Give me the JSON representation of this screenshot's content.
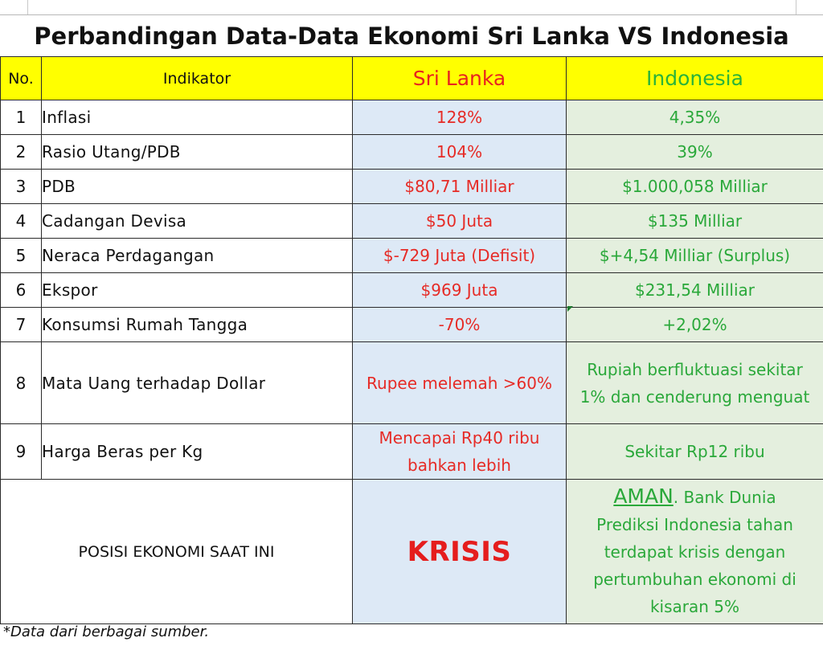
{
  "title": "Perbandingan Data-Data Ekonomi Sri Lanka VS Indonesia",
  "headers": {
    "no": "No.",
    "indikator": "Indikator",
    "sri_lanka": "Sri Lanka",
    "indonesia": "Indonesia"
  },
  "rows": [
    {
      "no": "1",
      "indikator": "Inflasi",
      "sri_lanka": "128%",
      "indonesia": "4,35%"
    },
    {
      "no": "2",
      "indikator": "Rasio Utang/PDB",
      "sri_lanka": "104%",
      "indonesia": "39%"
    },
    {
      "no": "3",
      "indikator": "PDB",
      "sri_lanka": "$80,71 Milliar",
      "indonesia": "$1.000,058 Milliar"
    },
    {
      "no": "4",
      "indikator": "Cadangan Devisa",
      "sri_lanka": "$50 Juta",
      "indonesia": "$135 Milliar"
    },
    {
      "no": "5",
      "indikator": "Neraca Perdagangan",
      "sri_lanka": "$-729 Juta (Defisit)",
      "indonesia": "$+4,54 Milliar (Surplus)"
    },
    {
      "no": "6",
      "indikator": "Ekspor",
      "sri_lanka": "$969 Juta",
      "indonesia": "$231,54 Milliar"
    },
    {
      "no": "7",
      "indikator": "Konsumsi Rumah Tangga",
      "sri_lanka": "-70%",
      "indonesia": "+2,02%"
    },
    {
      "no": "8",
      "indikator": "Mata Uang terhadap Dollar",
      "sri_lanka": "Rupee melemah >60%",
      "indonesia_line1": "Rupiah berfluktuasi sekitar",
      "indonesia_line2": "1% dan cenderung menguat"
    },
    {
      "no": "9",
      "indikator": "Harga Beras per Kg",
      "sri_lanka_line1": "Mencapai Rp40 ribu",
      "sri_lanka_line2": "bahkan lebih",
      "indonesia": "Sekitar Rp12 ribu"
    }
  ],
  "position": {
    "label": "POSISI EKONOMI SAAT INI",
    "sri_lanka": "KRISIS",
    "indonesia_aman": "AMAN",
    "indonesia_line1": ". Bank Dunia",
    "indonesia_line2": "Prediksi Indonesia tahan",
    "indonesia_line3": "terdapat krisis dengan",
    "indonesia_line4": "pertumbuhan ekonomi di",
    "indonesia_line5": "kisaran 5%"
  },
  "footnote": "*Data dari berbagai sumber.",
  "colors": {
    "header_bg": "#ffff00",
    "sri_lanka_text": "#e62b26",
    "indonesia_text": "#2aa83a",
    "sri_lanka_bg": "#dde9f6",
    "indonesia_bg": "#e4efde"
  }
}
